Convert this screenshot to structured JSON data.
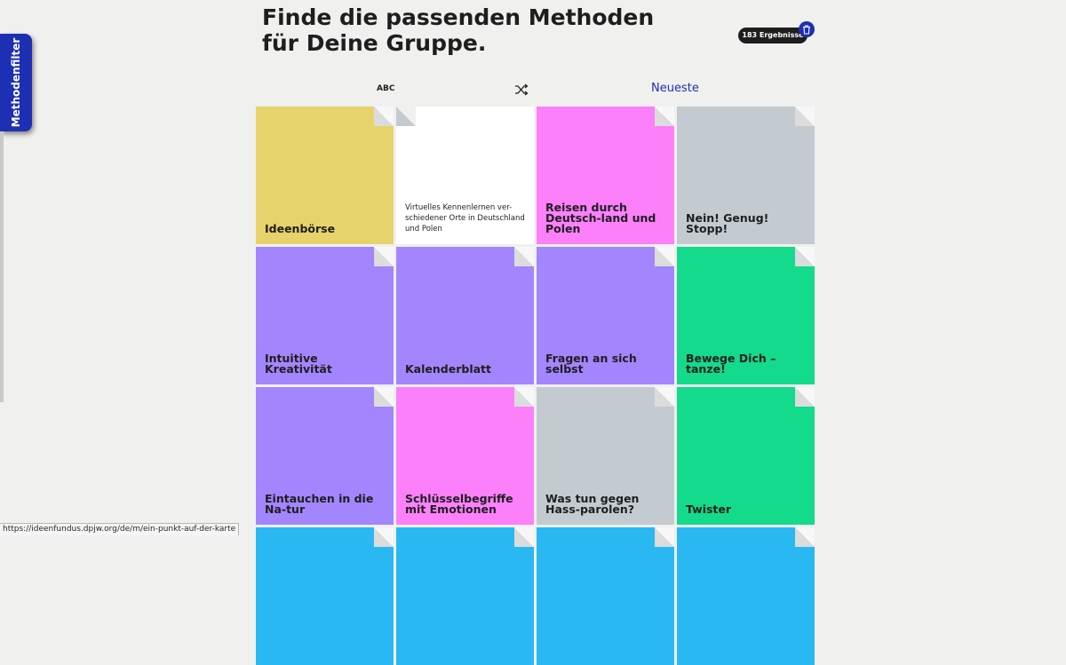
{
  "sidebar": {
    "label": "Methodenfilter",
    "color": "#1d2fb3"
  },
  "header": {
    "title_line1": "Finde die passenden Methoden",
    "title_line2": "für Deine Gruppe.",
    "results_badge": "183 Ergebnisse",
    "clear_icon": "trash-icon"
  },
  "sort": {
    "abc_label": "ABC",
    "shuffle_icon": "shuffle-icon",
    "newest_label": "Neueste"
  },
  "cards": [
    {
      "title": "Ideenbörse",
      "color": "#e6d36b"
    },
    {
      "title": "Virtuelles Kennenlernen ver-schiedener Orte in Deutschland und Polen",
      "color": "#ffffff"
    },
    {
      "title": "Reisen durch Deutsch-land und Polen",
      "color": "#fb80fa"
    },
    {
      "title": "Nein! Genug! Stopp!",
      "color": "#c3cbd1"
    },
    {
      "title": "Intuitive Kreativität",
      "color": "#a385fd"
    },
    {
      "title": "Kalenderblatt",
      "color": "#a385fd"
    },
    {
      "title": "Fragen an sich selbst",
      "color": "#a385fd"
    },
    {
      "title": "Bewege Dich – tanze!",
      "color": "#14da8c"
    },
    {
      "title": "Eintauchen in die Na-tur",
      "color": "#a385fd"
    },
    {
      "title": "Schlüsselbegriffe mit Emotionen",
      "color": "#fb80fa"
    },
    {
      "title": "Was tun gegen Hass-parolen?",
      "color": "#c3cbd1"
    },
    {
      "title": "Twister",
      "color": "#14da8c"
    },
    {
      "title": "",
      "color": "#29b8f2"
    },
    {
      "title": "",
      "color": "#29b8f2"
    },
    {
      "title": "",
      "color": "#29b8f2"
    },
    {
      "title": "",
      "color": "#29b8f2"
    }
  ],
  "status_url": "https://ideenfundus.dpjw.org/de/m/ein-punkt-auf-der-karte"
}
